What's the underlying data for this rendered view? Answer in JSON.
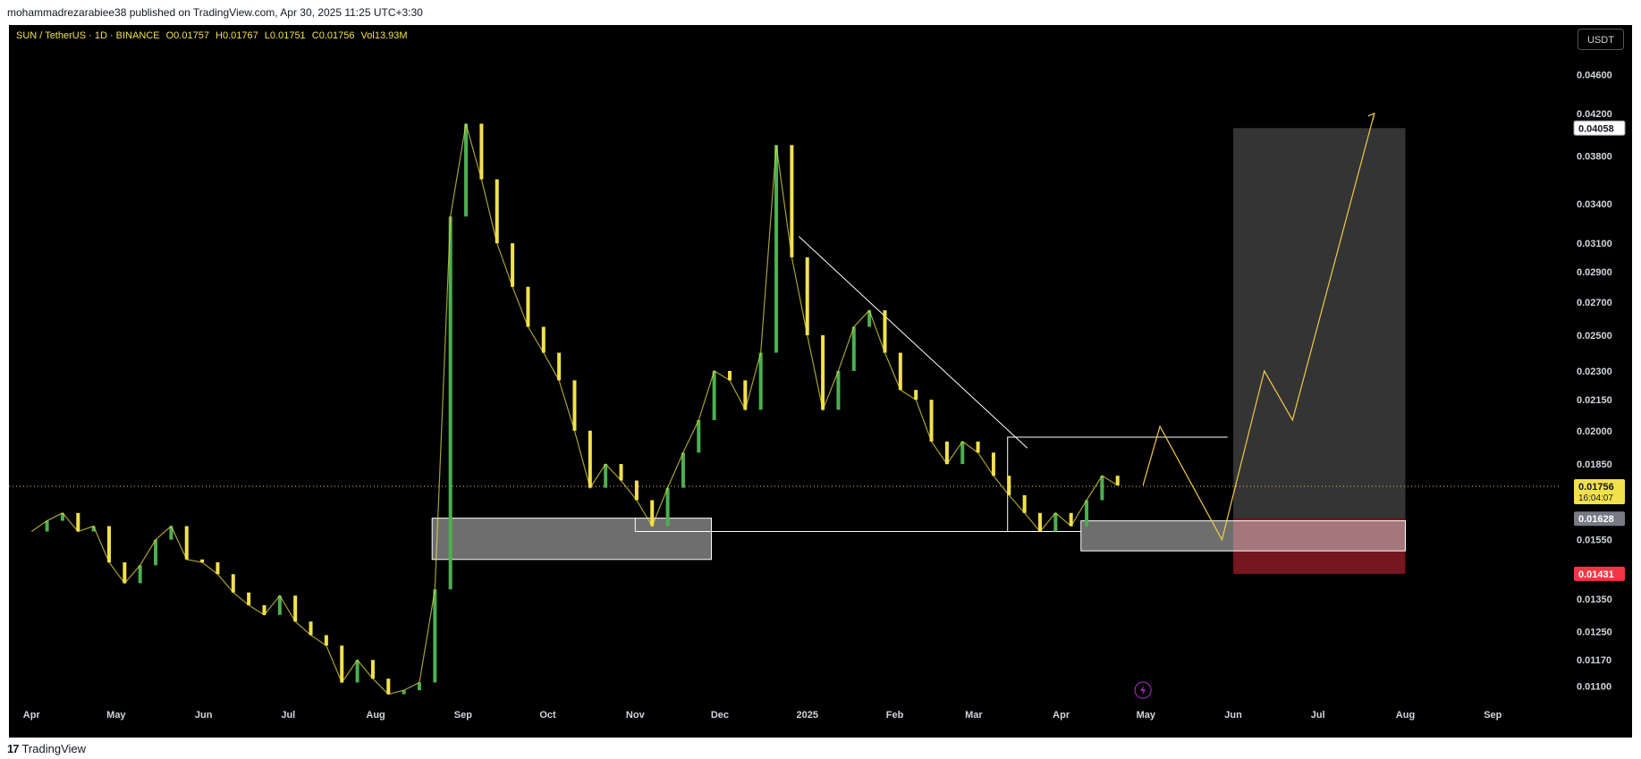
{
  "header": {
    "text": "mohammadrezarabiee38 published on TradingView.com, Apr 30, 2025 11:25 UTC+3:30"
  },
  "legend": {
    "symbol": "SUN / TetherUS · 1D · BINANCE",
    "open": "O0.01757",
    "high": "H0.01767",
    "low": "L0.01751",
    "close": "C0.01756",
    "volume": "Vol13.93M"
  },
  "currency_button": "USDT",
  "footer": {
    "logo": "17",
    "brand": "TradingView"
  },
  "colors": {
    "up": "#4caf50",
    "down": "#f2e14c",
    "price_line": "#f2c94c",
    "target_zone": "#3a3a3a",
    "stop_zone": "#8b1a24",
    "demand_zone": "#c8c8c8",
    "projection": "#f2c94c"
  },
  "icons": {
    "flash": "lightning-icon"
  },
  "chart_data": {
    "type": "line",
    "title": "SUN / TetherUS · 1D · BINANCE",
    "y_axis": {
      "ticks": [
        0.046,
        0.042,
        0.038,
        0.034,
        0.031,
        0.029,
        0.027,
        0.025,
        0.023,
        0.0215,
        0.02,
        0.0185,
        0.0155,
        0.0135,
        0.0125,
        0.0117,
        0.011
      ],
      "tick_labels": [
        "0.04600",
        "0.04200",
        "0.03800",
        "0.03400",
        "0.03100",
        "0.02900",
        "0.02700",
        "0.02500",
        "0.02300",
        "0.02150",
        "0.02000",
        "0.01850",
        "0.01550",
        "0.01350",
        "0.01250",
        "0.01170",
        "0.01100"
      ],
      "scale": "log",
      "range": [
        0.0105,
        0.0485
      ]
    },
    "x_axis": {
      "labels": [
        "Apr",
        "May",
        "Jun",
        "Jul",
        "Aug",
        "Sep",
        "Oct",
        "Nov",
        "Dec",
        "2025",
        "Feb",
        "Mar",
        "Apr",
        "May",
        "Jun",
        "Jul",
        "Aug",
        "Sep"
      ]
    },
    "price_badges": [
      {
        "value": "0.04058",
        "style": "white"
      },
      {
        "value": "0.01756",
        "sub": "16:04:07",
        "style": "yellow"
      },
      {
        "value": "0.01628",
        "style": "gray"
      },
      {
        "value": "0.01431",
        "style": "red"
      }
    ],
    "series": [
      {
        "values": [
          0.0158,
          0.0162,
          0.0165,
          0.0158,
          0.016,
          0.0147,
          0.014,
          0.0146,
          0.0155,
          0.016,
          0.0148,
          0.0147,
          0.0143,
          0.0137,
          0.0133,
          0.013,
          0.0136,
          0.0128,
          0.0124,
          0.0121,
          0.0111,
          0.0117,
          0.0112,
          0.0108,
          0.0109,
          0.0111,
          0.0138,
          0.033,
          0.041,
          0.036,
          0.031,
          0.028,
          0.0255,
          0.024,
          0.0225,
          0.02,
          0.0175,
          0.0185,
          0.0178,
          0.017,
          0.016,
          0.0175,
          0.019,
          0.0205,
          0.023,
          0.0225,
          0.021,
          0.024,
          0.039,
          0.03,
          0.025,
          0.021,
          0.023,
          0.0255,
          0.0265,
          0.024,
          0.022,
          0.0215,
          0.0195,
          0.0185,
          0.0195,
          0.019,
          0.018,
          0.0172,
          0.0165,
          0.0158,
          0.0165,
          0.016,
          0.017,
          0.018,
          0.0176
        ],
        "dates_start": "2024-04-01",
        "step_days": 5.5
      }
    ],
    "annotations": {
      "demand_zones": [
        {
          "from": "2024-08-21",
          "to": "2024-11-28",
          "low": 0.0148,
          "high": 0.0163
        },
        {
          "from": "2025-04-08",
          "to": "2025-08-01",
          "low": 0.0151,
          "high": 0.0162
        }
      ],
      "target_zone": {
        "from": "2025-06-01",
        "to": "2025-08-01",
        "low": 0.0163,
        "high": 0.04058
      },
      "stop_zone": {
        "from": "2025-06-01",
        "to": "2025-08-01",
        "low": 0.01431,
        "high": 0.0163
      },
      "trendline": {
        "from": [
          "2024-12-29",
          0.0315
        ],
        "to": [
          "2025-03-20",
          0.0192
        ]
      },
      "neckline": {
        "from": [
          "2024-11-01",
          0.0158
        ],
        "to": [
          "2025-04-08",
          0.0158
        ]
      },
      "range_box": {
        "from": "2025-03-13",
        "to": "2025-05-30",
        "low": 0.0158,
        "high": 0.0197
      },
      "projection": [
        [
          "2025-04-30",
          0.0176
        ],
        [
          "2025-05-06",
          0.0202
        ],
        [
          "2025-05-28",
          0.0155
        ],
        [
          "2025-06-12",
          0.023
        ],
        [
          "2025-06-22",
          0.0205
        ],
        [
          "2025-07-21",
          0.042
        ]
      ]
    }
  }
}
